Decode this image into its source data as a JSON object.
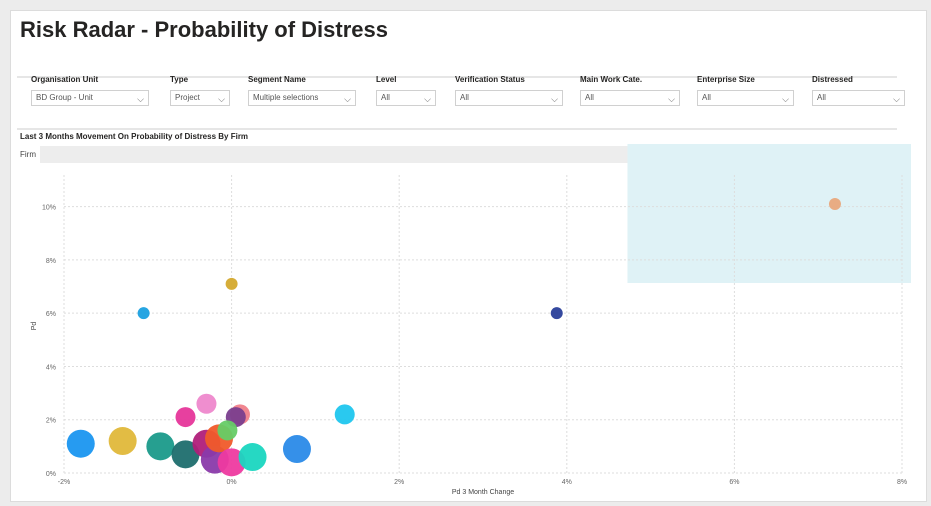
{
  "page": {
    "title": "Risk Radar - Probability of Distress"
  },
  "filters": [
    {
      "label": "Organisation Unit",
      "value": "BD Group - Unit"
    },
    {
      "label": "Type",
      "value": "Project"
    },
    {
      "label": "Segment Name",
      "value": "Multiple selections"
    },
    {
      "label": "Level",
      "value": "All"
    },
    {
      "label": "Verification Status",
      "value": "All"
    },
    {
      "label": "Main Work Cate.",
      "value": "All"
    },
    {
      "label": "Enterprise Size",
      "value": "All"
    },
    {
      "label": "Distressed",
      "value": "All"
    }
  ],
  "firm_slicer": {
    "label": "Firm"
  },
  "colors": {
    "highlight_zone": "#dff2f6",
    "grid": "#dddddd"
  },
  "chart_data": {
    "type": "scatter",
    "title": "Last 3 Months Movement On Probability of Distress By Firm",
    "xlabel": "Pd 3 Month Change",
    "ylabel": "Pd",
    "xlim": [
      -0.02,
      0.08
    ],
    "ylim": [
      0,
      0.11
    ],
    "x_ticks": [
      "-2%",
      "0%",
      "2%",
      "4%",
      "6%",
      "8%"
    ],
    "y_ticks": [
      "0%",
      "2%",
      "4%",
      "6%",
      "8%",
      "10%"
    ],
    "grid": true,
    "highlight_region": {
      "x": [
        0.047,
        0.08
      ],
      "y": [
        0.072,
        0.11
      ]
    },
    "points": [
      {
        "x": 0.072,
        "y": 0.101,
        "size": "small",
        "color": "#e8a87c"
      },
      {
        "x": 0.0,
        "y": 0.071,
        "size": "small",
        "color": "#d4a92e"
      },
      {
        "x": -0.0105,
        "y": 0.06,
        "size": "small",
        "color": "#1aa0e0"
      },
      {
        "x": 0.0388,
        "y": 0.06,
        "size": "small",
        "color": "#2a3f9a"
      },
      {
        "x": 0.0135,
        "y": 0.022,
        "size": "medium",
        "color": "#1fc6ee"
      },
      {
        "x": -0.003,
        "y": 0.026,
        "size": "medium",
        "color": "#ee88cc"
      },
      {
        "x": -0.0055,
        "y": 0.021,
        "size": "medium",
        "color": "#e6369a"
      },
      {
        "x": 0.001,
        "y": 0.022,
        "size": "medium",
        "color": "#f0808a"
      },
      {
        "x": 0.0005,
        "y": 0.021,
        "size": "medium",
        "color": "#7a3e8e"
      },
      {
        "x": -0.018,
        "y": 0.011,
        "size": "large",
        "color": "#1a96f0"
      },
      {
        "x": -0.013,
        "y": 0.012,
        "size": "large",
        "color": "#e0b83a"
      },
      {
        "x": -0.0085,
        "y": 0.01,
        "size": "large",
        "color": "#1a9a8a"
      },
      {
        "x": -0.0055,
        "y": 0.007,
        "size": "large",
        "color": "#1e6e6e"
      },
      {
        "x": -0.003,
        "y": 0.011,
        "size": "large",
        "color": "#b01f7a"
      },
      {
        "x": -0.002,
        "y": 0.005,
        "size": "large",
        "color": "#8a3aaa"
      },
      {
        "x": -0.0015,
        "y": 0.013,
        "size": "large",
        "color": "#f05a2a"
      },
      {
        "x": -0.0005,
        "y": 0.016,
        "size": "medium",
        "color": "#66cc66"
      },
      {
        "x": 0.0,
        "y": 0.004,
        "size": "large",
        "color": "#ee3aa0"
      },
      {
        "x": 0.0025,
        "y": 0.006,
        "size": "large",
        "color": "#1ad6c0"
      },
      {
        "x": 0.0078,
        "y": 0.009,
        "size": "large",
        "color": "#2a8ae8"
      }
    ]
  }
}
